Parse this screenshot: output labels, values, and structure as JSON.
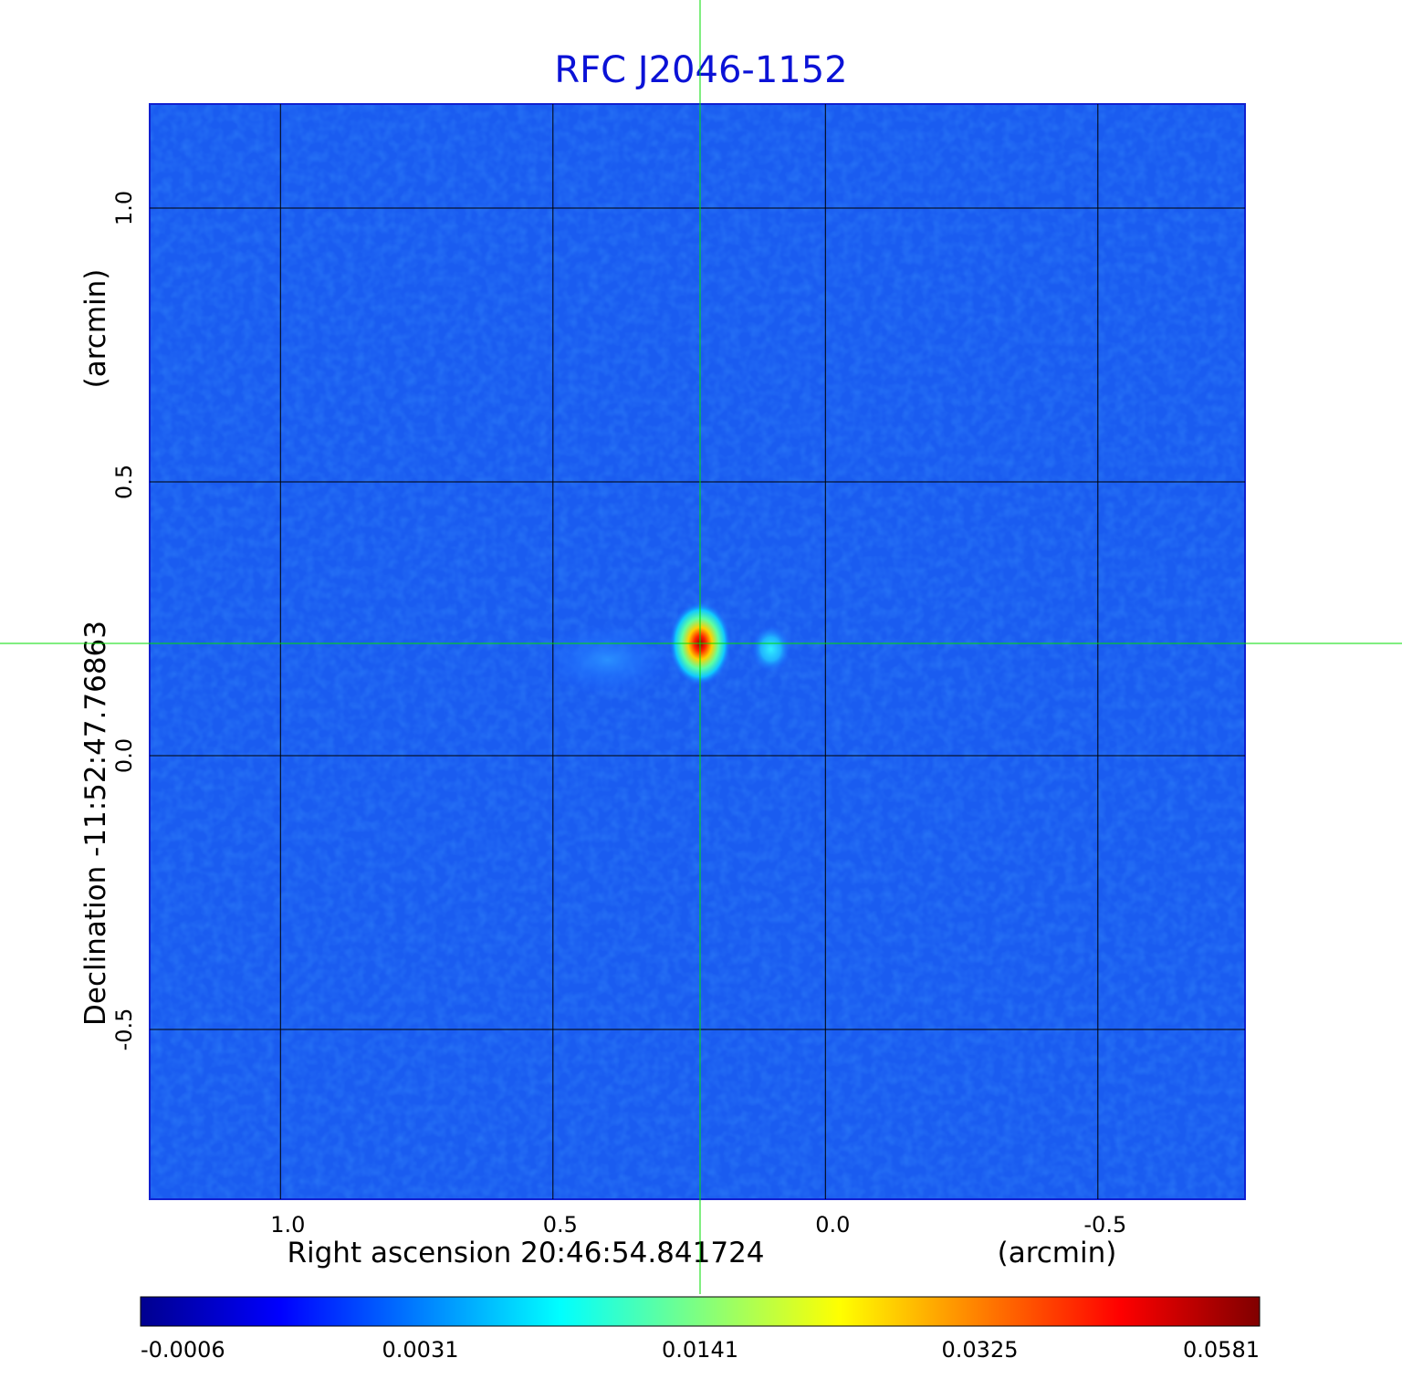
{
  "chart_data": {
    "type": "heatmap",
    "title": "RFC J2046-1152",
    "title_color": "#0b12d6",
    "xlabel": "Right ascension  20:46:54.841724",
    "xunit": "(arcmin)",
    "ylabel": "Declination  -11:52:47.76863",
    "yunit": "(arcmin)",
    "xlim": [
      1.24,
      -0.77
    ],
    "ylim": [
      -0.81,
      1.19
    ],
    "xticks": [
      1.0,
      0.5,
      0.0,
      -0.5
    ],
    "xtick_labels": [
      "1.0",
      "0.5",
      "0.0",
      "-0.5"
    ],
    "yticks": [
      1.0,
      0.5,
      0.0,
      -0.5
    ],
    "ytick_labels": [
      "1.0",
      "0.5",
      "0.0",
      "-0.5"
    ],
    "grid": true,
    "colormap": "jet",
    "background_level": -0.0003,
    "sources": [
      {
        "x": 0.23,
        "y": 0.205,
        "peak": 0.0581
      },
      {
        "x": 0.1,
        "y": 0.195,
        "peak": 0.009
      },
      {
        "x": 0.4,
        "y": 0.175,
        "peak": 0.0015
      }
    ],
    "crosshair": {
      "x": 0.23,
      "y": 0.205,
      "color": "#00dd00"
    },
    "colorbar": {
      "ticks": [
        -0.0006,
        0.0031,
        0.0141,
        0.0325,
        0.0581
      ],
      "tick_labels": [
        "-0.0006",
        "0.0031",
        "0.0141",
        "0.0325",
        "0.0581"
      ]
    }
  }
}
